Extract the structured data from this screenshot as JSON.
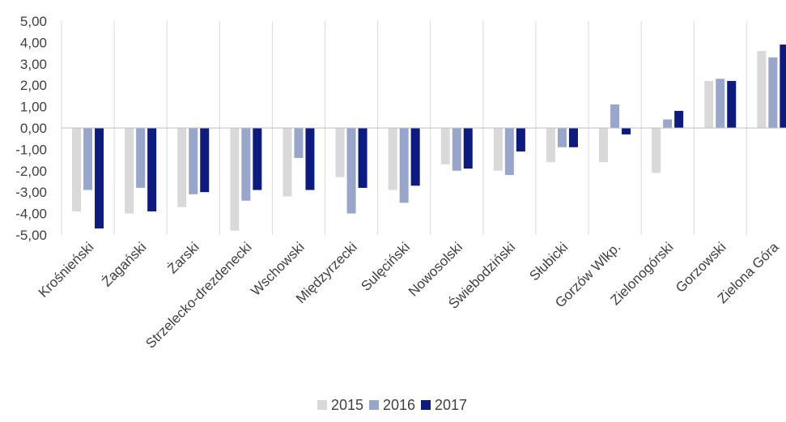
{
  "chart_data": {
    "type": "bar",
    "categories": [
      "Krośnieński",
      "Żagański",
      "Żarski",
      "Strzelecko-drezdenecki",
      "Wschowski",
      "Międzyrzecki",
      "Sulęciński",
      "Nowosolski",
      "Świebodziński",
      "Słubicki",
      "Gorzów Wlkp.",
      "Zielonogórski",
      "Gorzowski",
      "Zielona Góra"
    ],
    "series": [
      {
        "name": "2015",
        "color": "#d9d9d9",
        "values": [
          -3.9,
          -4.0,
          -3.7,
          -4.8,
          -3.2,
          -2.3,
          -2.9,
          -1.7,
          -2.0,
          -1.6,
          -1.6,
          -2.1,
          2.2,
          3.6
        ]
      },
      {
        "name": "2016",
        "color": "#99a6cc",
        "values": [
          -2.9,
          -2.8,
          -3.1,
          -3.4,
          -1.4,
          -4.0,
          -3.5,
          -2.0,
          -2.2,
          -0.9,
          1.1,
          0.4,
          2.3,
          3.3
        ]
      },
      {
        "name": "2017",
        "color": "#0d1a80",
        "values": [
          -4.7,
          -3.9,
          -3.0,
          -2.9,
          -2.9,
          -2.8,
          -2.7,
          -1.9,
          -1.1,
          -0.9,
          -0.3,
          0.8,
          2.2,
          3.9
        ]
      }
    ],
    "ylim": [
      -5,
      5
    ],
    "yticks": [
      "5,00",
      "4,00",
      "3,00",
      "2,00",
      "1,00",
      "0,00",
      "-1,00",
      "-2,00",
      "-3,00",
      "-4,00",
      "-5,00"
    ],
    "ytick_values": [
      5,
      4,
      3,
      2,
      1,
      0,
      -1,
      -2,
      -3,
      -4,
      -5
    ],
    "grid": "vertical separators between categories",
    "legend": "bottom-center"
  }
}
